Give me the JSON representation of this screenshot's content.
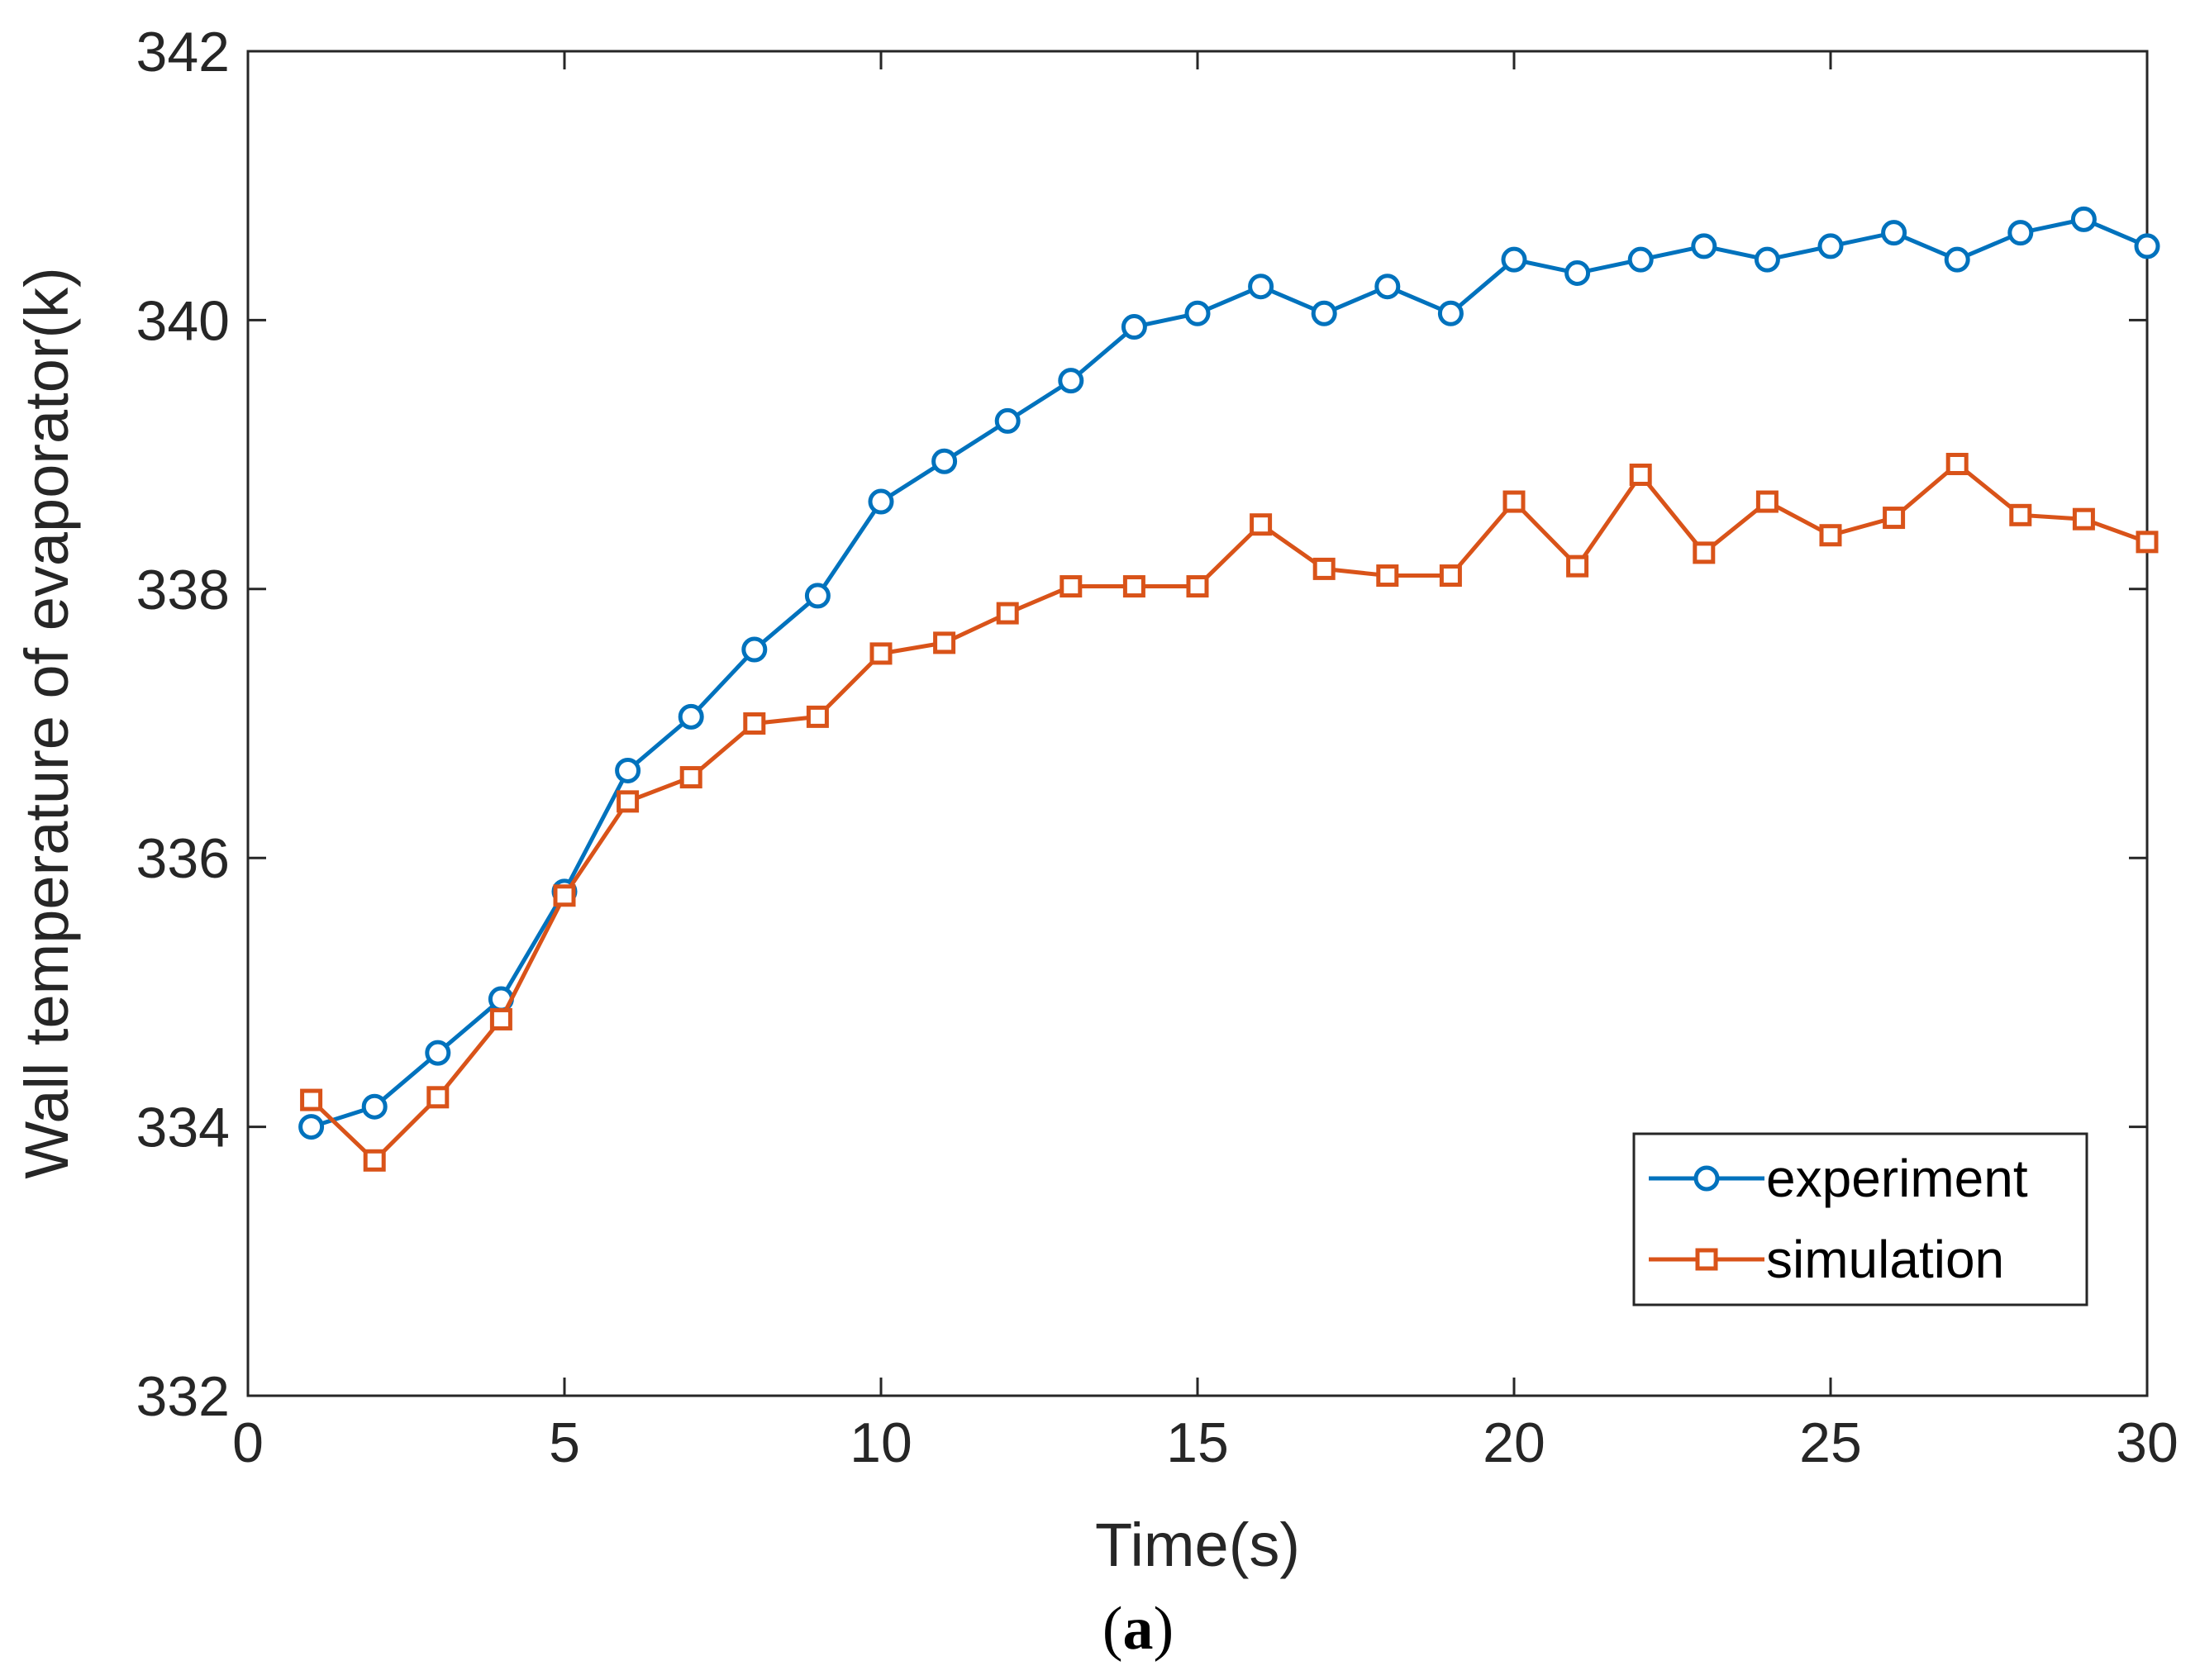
{
  "chart_data": {
    "type": "line",
    "xlabel": "Time(s)",
    "ylabel": "Wall temperature of evaporator(k)",
    "caption": "a",
    "xlim": [
      0,
      30
    ],
    "ylim": [
      332,
      342
    ],
    "xticks": [
      0,
      5,
      10,
      15,
      20,
      25,
      30
    ],
    "yticks": [
      332,
      334,
      336,
      338,
      340,
      342
    ],
    "legend_position": "bottom-right",
    "x": [
      1,
      2,
      3,
      4,
      5,
      6,
      7,
      8,
      9,
      10,
      11,
      12,
      13,
      14,
      15,
      16,
      17,
      18,
      19,
      20,
      21,
      22,
      23,
      24,
      25,
      26,
      27,
      28,
      29,
      30
    ],
    "series": [
      {
        "name": "experiment",
        "color": "#0072BD",
        "marker": "circle",
        "values": [
          334.0,
          334.15,
          334.55,
          334.95,
          335.75,
          336.65,
          337.05,
          337.55,
          337.95,
          338.65,
          338.95,
          339.25,
          339.55,
          339.95,
          340.05,
          340.25,
          340.05,
          340.25,
          340.05,
          340.45,
          340.35,
          340.45,
          340.55,
          340.45,
          340.55,
          340.65,
          340.45,
          340.65,
          340.75,
          340.55
        ]
      },
      {
        "name": "simulation",
        "color": "#D95319",
        "marker": "square",
        "values": [
          334.2,
          333.75,
          334.22,
          334.8,
          335.72,
          336.42,
          336.6,
          337.0,
          337.05,
          337.52,
          337.6,
          337.82,
          338.02,
          338.02,
          338.02,
          338.48,
          338.15,
          338.1,
          338.1,
          338.65,
          338.17,
          338.85,
          338.27,
          338.65,
          338.4,
          338.53,
          338.93,
          338.55,
          338.52,
          338.35
        ]
      }
    ]
  }
}
